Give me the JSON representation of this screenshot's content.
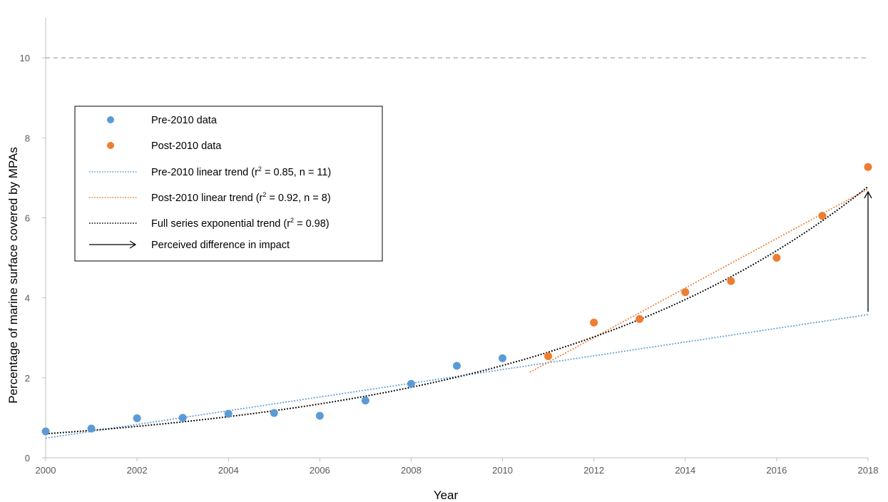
{
  "chart_data": {
    "type": "scatter",
    "xlabel": "Year",
    "ylabel": "Percentage of marine surface covered by MPAs",
    "xlim": [
      2000,
      2018
    ],
    "ylim": [
      0,
      11
    ],
    "x_ticks": [
      2000,
      2002,
      2004,
      2006,
      2008,
      2010,
      2012,
      2014,
      2016,
      2018
    ],
    "y_ticks": [
      0,
      2,
      4,
      6,
      8,
      10
    ],
    "grid": false,
    "target_line": {
      "y": 10,
      "style": "dashed",
      "color": "#a6a6a6"
    },
    "legend_position": "left",
    "series": [
      {
        "name": "Pre-2010 data",
        "kind": "points",
        "color": "#5b9bd5",
        "points": [
          [
            2000,
            0.66
          ],
          [
            2001,
            0.73
          ],
          [
            2002,
            0.99
          ],
          [
            2003,
            1.0
          ],
          [
            2004,
            1.1
          ],
          [
            2005,
            1.12
          ],
          [
            2006,
            1.05
          ],
          [
            2007,
            1.43
          ],
          [
            2008,
            1.85
          ],
          [
            2009,
            2.3
          ],
          [
            2010,
            2.49
          ]
        ]
      },
      {
        "name": "Post-2010 data",
        "kind": "points",
        "color": "#ed7d31",
        "points": [
          [
            2011,
            2.54
          ],
          [
            2012,
            3.38
          ],
          [
            2013,
            3.47
          ],
          [
            2014,
            4.14
          ],
          [
            2015,
            4.42
          ],
          [
            2016,
            5.0
          ],
          [
            2017,
            6.05
          ],
          [
            2018,
            7.27
          ]
        ]
      },
      {
        "name": "Pre-2010 linear trend",
        "name_suffix": " = 0.85, n = 11)",
        "kind": "linear",
        "color": "#5b9bd5",
        "x": [
          2000,
          2018
        ],
        "y": [
          0.49,
          3.58
        ]
      },
      {
        "name": "Post-2010 linear trend",
        "name_suffix": " = 0.92, n = 8)",
        "kind": "linear",
        "color": "#ed7d31",
        "x": [
          2010.6,
          2018
        ],
        "y": [
          2.14,
          6.72
        ]
      },
      {
        "name": "Full series exponential trend",
        "name_suffix": " = 0.98)",
        "kind": "exponential",
        "color": "#000000",
        "x": [
          2000,
          2018
        ],
        "y": [
          0.6,
          6.78
        ]
      },
      {
        "name": "Perceived difference in impact",
        "kind": "arrow",
        "color": "#000000",
        "x": 2018,
        "from": 3.65,
        "to": 6.65
      }
    ]
  },
  "legend": {
    "items": [
      {
        "label": "Pre-2010 data"
      },
      {
        "label": "Post-2010 data"
      },
      {
        "label": "Pre-2010 linear trend (r",
        "sup": "2",
        "suffix": " = 0.85, n = 11)"
      },
      {
        "label": "Post-2010 linear trend (r",
        "sup": "2",
        "suffix": " = 0.92, n = 8)"
      },
      {
        "label": "Full series exponential trend (r",
        "sup": "2",
        "suffix": " = 0.98)"
      },
      {
        "label": "Perceived difference in impact"
      }
    ]
  }
}
